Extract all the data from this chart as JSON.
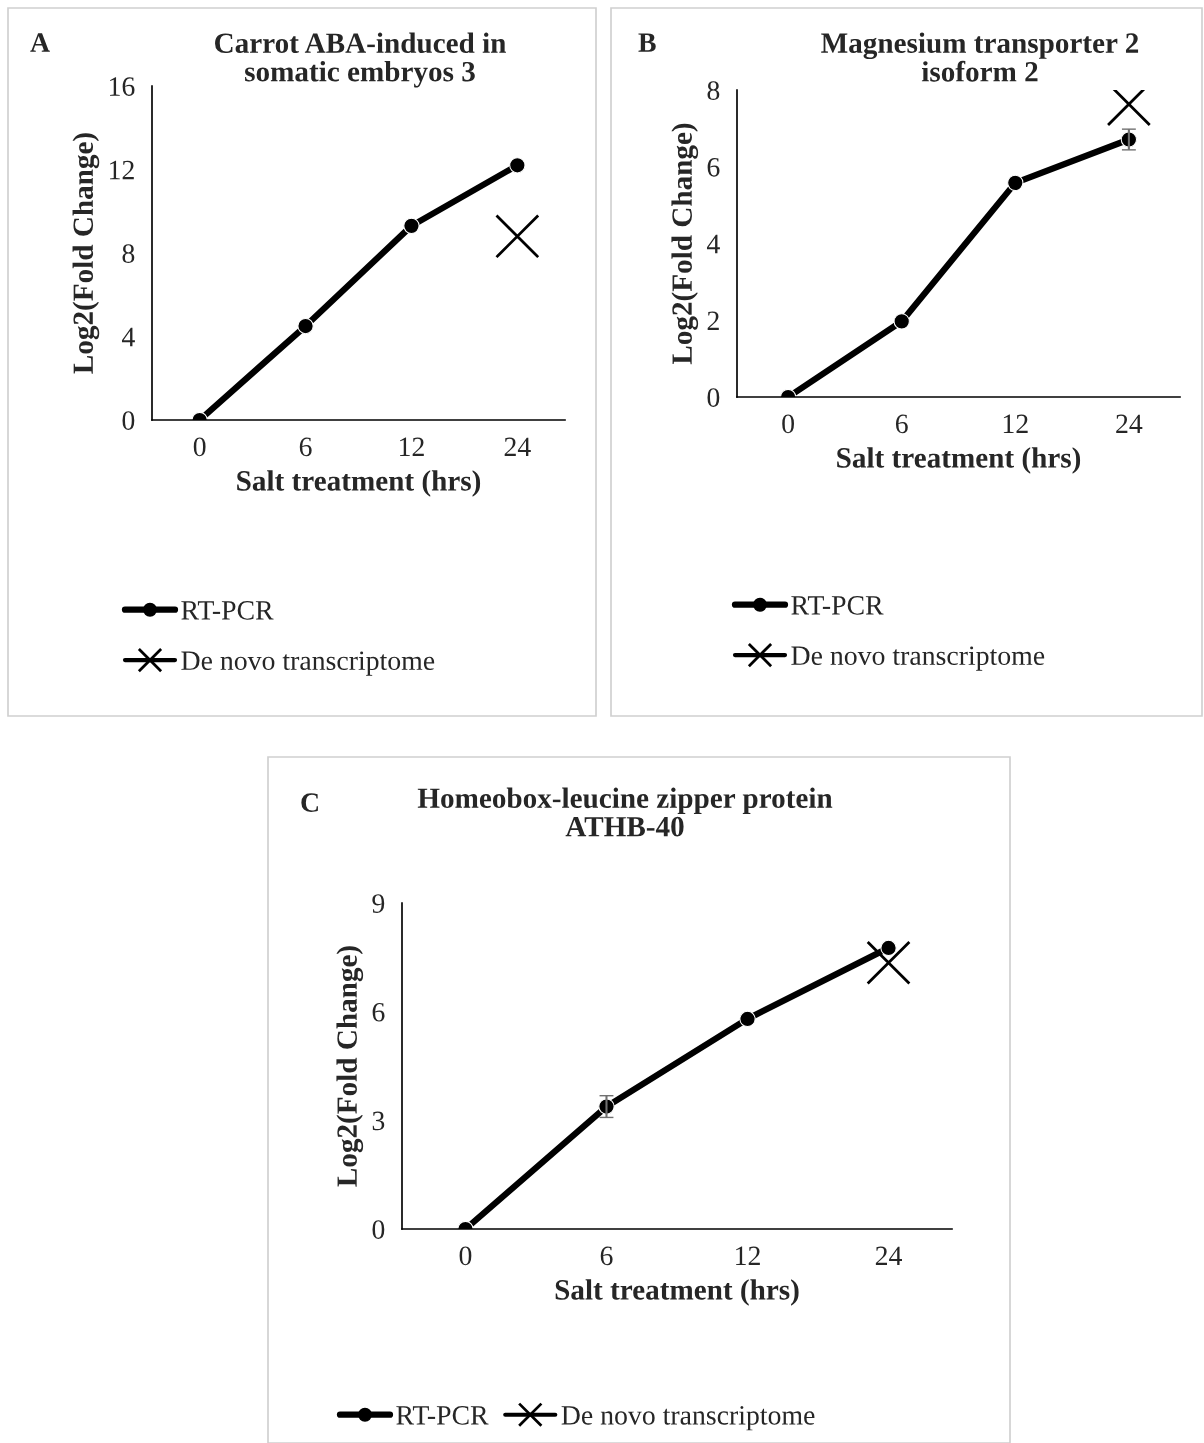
{
  "chart_data": [
    {
      "type": "line",
      "title": "Carrot ABA-induced in\nsomatic embryos 3",
      "xlabel": "Salt treatment (hrs)",
      "ylabel": "Log2(Fold Change)",
      "categories": [
        "0",
        "6",
        "12",
        "24"
      ],
      "ylim": [
        0,
        16
      ],
      "yticks": [
        0,
        4,
        8,
        12,
        16
      ],
      "grid": false,
      "legend": "bottom",
      "annotations": [
        "A"
      ],
      "series": [
        {
          "name": "RT-PCR",
          "type": "line",
          "color": "#000000",
          "marker": "circle",
          "values": [
            0,
            4.5,
            9.3,
            12.2
          ]
        },
        {
          "name": "De novo transcriptome",
          "type": "scatter",
          "color": "#000000",
          "marker": "cross",
          "values": [
            null,
            null,
            null,
            8.8
          ]
        }
      ]
    },
    {
      "type": "line",
      "title": "Magnesium transporter 2\nisoform 2",
      "xlabel": "Salt treatment (hrs)",
      "ylabel": "Log2(Fold Change)",
      "categories": [
        "0",
        "6",
        "12",
        "24"
      ],
      "ylim": [
        0,
        8
      ],
      "yticks": [
        0,
        2,
        4,
        6,
        8
      ],
      "grid": false,
      "legend": "bottom",
      "annotations": [
        "B"
      ],
      "series": [
        {
          "name": "RT-PCR",
          "type": "line",
          "color": "#000000",
          "marker": "circle",
          "values": [
            0,
            1.97,
            5.58,
            6.71
          ],
          "errors": [
            null,
            null,
            null,
            0.27
          ]
        },
        {
          "name": "De novo transcriptome",
          "type": "scatter",
          "color": "#000000",
          "marker": "cross",
          "values": [
            null,
            null,
            null,
            7.63
          ]
        }
      ]
    },
    {
      "type": "line",
      "title": "Homeobox-leucine zipper protein\nATHB-40",
      "xlabel": "Salt treatment (hrs)",
      "ylabel": "Log2(Fold Change)",
      "categories": [
        "0",
        "6",
        "12",
        "24"
      ],
      "ylim": [
        0,
        9
      ],
      "yticks": [
        0,
        3,
        6,
        9
      ],
      "grid": false,
      "legend": "bottom",
      "annotations": [
        "C"
      ],
      "series": [
        {
          "name": "RT-PCR",
          "type": "line",
          "color": "#000000",
          "marker": "circle",
          "values": [
            0,
            3.38,
            5.8,
            7.76
          ],
          "errors": [
            null,
            0.3,
            null,
            null
          ]
        },
        {
          "name": "De novo transcriptome",
          "type": "scatter",
          "color": "#000000",
          "marker": "cross",
          "values": [
            null,
            null,
            null,
            7.35
          ]
        }
      ]
    }
  ]
}
